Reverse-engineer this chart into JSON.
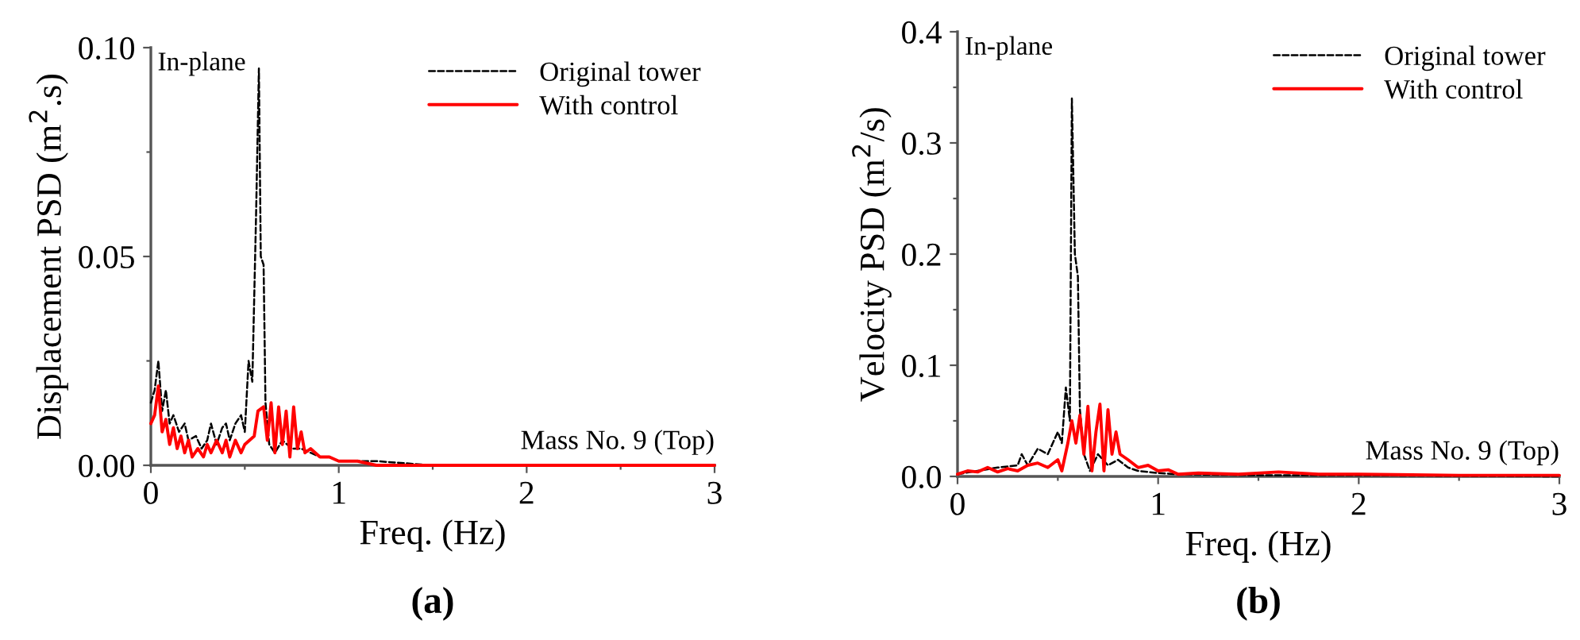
{
  "chart_data": [
    {
      "type": "line",
      "xlabel": "Freq. (Hz)",
      "ylabel": "Displacement PSD (m$^{2}$.s)",
      "annotations": [
        "In-plane",
        "Mass No. 9 (Top)",
        "(a)"
      ],
      "xlim": [
        0,
        3
      ],
      "ylim": [
        0,
        0.1
      ],
      "xticks": [
        0,
        {
          "value": 0.5,
          "label": null
        },
        1,
        {
          "value": 1.5,
          "label": null
        },
        2,
        {
          "value": 2.5,
          "label": null
        },
        3
      ],
      "yticks": [
        {
          "value": 0,
          "label": "0.00"
        },
        {
          "value": 0.025,
          "label": null
        },
        {
          "value": 0.05,
          "label": "0.05"
        },
        {
          "value": 0.075,
          "label": null
        },
        {
          "value": 0.1,
          "label": "0.10"
        }
      ],
      "legend": "top right",
      "grid": false,
      "series": [
        {
          "name": "Original tower",
          "color": "#000000",
          "line_style": "dashed",
          "x": [
            0,
            0.02,
            0.04,
            0.06,
            0.08,
            0.1,
            0.12,
            0.15,
            0.18,
            0.2,
            0.24,
            0.27,
            0.3,
            0.32,
            0.35,
            0.38,
            0.4,
            0.42,
            0.45,
            0.48,
            0.5,
            0.52,
            0.54,
            0.56,
            0.575,
            0.585,
            0.6,
            0.61,
            0.63,
            0.66,
            0.7,
            0.75,
            0.8,
            0.85,
            0.9,
            0.95,
            1.0,
            1.1,
            1.2,
            1.5,
            2,
            2.5,
            3
          ],
          "values": [
            0.015,
            0.018,
            0.025,
            0.013,
            0.018,
            0.01,
            0.012,
            0.008,
            0.01,
            0.006,
            0.007,
            0.004,
            0.006,
            0.01,
            0.005,
            0.009,
            0.01,
            0.006,
            0.01,
            0.012,
            0.008,
            0.025,
            0.02,
            0.06,
            0.095,
            0.05,
            0.048,
            0.015,
            0.005,
            0.003,
            0.006,
            0.004,
            0.004,
            0.003,
            0.002,
            0.002,
            0.001,
            0.001,
            0.001,
            0,
            0,
            0,
            0
          ]
        },
        {
          "name": "With control",
          "color": "#ff0000",
          "line_style": "solid",
          "x": [
            0,
            0.02,
            0.04,
            0.06,
            0.08,
            0.1,
            0.12,
            0.14,
            0.16,
            0.18,
            0.2,
            0.22,
            0.25,
            0.28,
            0.3,
            0.32,
            0.35,
            0.38,
            0.4,
            0.42,
            0.45,
            0.48,
            0.5,
            0.55,
            0.57,
            0.6,
            0.62,
            0.64,
            0.66,
            0.68,
            0.7,
            0.72,
            0.74,
            0.76,
            0.78,
            0.8,
            0.82,
            0.85,
            0.9,
            0.95,
            1.0,
            1.1,
            1.2,
            1.5,
            2,
            2.5,
            3
          ],
          "values": [
            0.01,
            0.012,
            0.019,
            0.008,
            0.011,
            0.005,
            0.009,
            0.004,
            0.007,
            0.003,
            0.006,
            0.002,
            0.004,
            0.002,
            0.005,
            0.003,
            0.006,
            0.003,
            0.006,
            0.002,
            0.006,
            0.003,
            0.005,
            0.007,
            0.013,
            0.014,
            0.006,
            0.015,
            0.003,
            0.014,
            0.005,
            0.013,
            0.002,
            0.014,
            0.004,
            0.008,
            0.003,
            0.004,
            0.002,
            0.002,
            0.001,
            0.001,
            0,
            0,
            0,
            0,
            0
          ]
        }
      ]
    },
    {
      "type": "line",
      "xlabel": "Freq. (Hz)",
      "ylabel": "Velocity PSD (m$^{2}$/s)",
      "annotations": [
        "In-plane",
        "Mass No. 9 (Top)",
        "(b)"
      ],
      "xlim": [
        0,
        3
      ],
      "ylim": [
        0,
        0.4
      ],
      "xticks": [
        0,
        {
          "value": 0.5,
          "label": null
        },
        1,
        {
          "value": 1.5,
          "label": null
        },
        2,
        {
          "value": 2.5,
          "label": null
        },
        3
      ],
      "yticks": [
        {
          "value": 0,
          "label": "0.0"
        },
        {
          "value": 0.05,
          "label": null
        },
        0.1,
        {
          "value": 0.15,
          "label": null
        },
        0.2,
        {
          "value": 0.25,
          "label": null
        },
        0.3,
        {
          "value": 0.35,
          "label": null
        },
        0.4
      ],
      "legend": "top right",
      "grid": false,
      "series": [
        {
          "name": "Original tower",
          "color": "#000000",
          "line_style": "dashed",
          "x": [
            0,
            0.1,
            0.2,
            0.3,
            0.32,
            0.35,
            0.4,
            0.45,
            0.5,
            0.52,
            0.54,
            0.56,
            0.57,
            0.585,
            0.6,
            0.61,
            0.63,
            0.66,
            0.7,
            0.75,
            0.8,
            0.85,
            0.9,
            1.0,
            1.1,
            1.5,
            2,
            3
          ],
          "values": [
            0.002,
            0.005,
            0.008,
            0.01,
            0.02,
            0.01,
            0.025,
            0.02,
            0.04,
            0.03,
            0.08,
            0.05,
            0.34,
            0.2,
            0.18,
            0.06,
            0.02,
            0.005,
            0.02,
            0.01,
            0.015,
            0.008,
            0.005,
            0.003,
            0.002,
            0.001,
            0.001,
            0
          ]
        },
        {
          "name": "With control",
          "color": "#ff0000",
          "line_style": "solid",
          "x": [
            0,
            0.05,
            0.1,
            0.15,
            0.2,
            0.25,
            0.3,
            0.35,
            0.4,
            0.45,
            0.5,
            0.52,
            0.55,
            0.57,
            0.59,
            0.61,
            0.63,
            0.65,
            0.67,
            0.69,
            0.71,
            0.73,
            0.75,
            0.77,
            0.79,
            0.81,
            0.85,
            0.9,
            0.95,
            1.0,
            1.05,
            1.1,
            1.2,
            1.4,
            1.6,
            1.8,
            2.0,
            2.5,
            3
          ],
          "values": [
            0.002,
            0.005,
            0.004,
            0.008,
            0.004,
            0.007,
            0.005,
            0.01,
            0.012,
            0.008,
            0.015,
            0.005,
            0.03,
            0.05,
            0.03,
            0.055,
            0.02,
            0.063,
            0.005,
            0.04,
            0.065,
            0.005,
            0.06,
            0.02,
            0.04,
            0.02,
            0.015,
            0.008,
            0.01,
            0.005,
            0.006,
            0.002,
            0.003,
            0.002,
            0.004,
            0.002,
            0.002,
            0.001,
            0.001
          ]
        }
      ]
    }
  ]
}
